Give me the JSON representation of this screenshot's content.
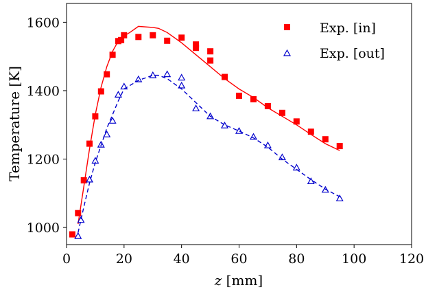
{
  "chart_data": {
    "type": "scatter",
    "xlabel_var": "z",
    "xlabel_unit": " [mm]",
    "ylabel": "Temperature [K]",
    "xlim": [
      0,
      120
    ],
    "ylim": [
      950,
      1655
    ],
    "xticks": [
      0,
      20,
      40,
      60,
      80,
      100,
      120
    ],
    "yticks": [
      1000,
      1200,
      1400,
      1600
    ],
    "grid": false,
    "legend_position": "top-right",
    "series": [
      {
        "name": "Exp. [in]",
        "marker": "filled-square",
        "color": "#ff0000",
        "x": [
          2,
          4,
          6,
          8,
          10,
          12,
          14,
          16,
          18,
          19,
          20,
          25,
          30,
          35,
          40,
          45,
          45,
          50,
          50,
          55,
          60,
          65,
          70,
          75,
          80,
          85,
          90,
          95
        ],
        "y": [
          980,
          1042,
          1138,
          1245,
          1325,
          1398,
          1448,
          1505,
          1545,
          1548,
          1562,
          1557,
          1562,
          1546,
          1555,
          1535,
          1525,
          1515,
          1488,
          1440,
          1385,
          1375,
          1355,
          1335,
          1310,
          1280,
          1258,
          1238
        ]
      },
      {
        "name": "Exp. [out]",
        "marker": "open-triangle",
        "color": "#0000cc",
        "x": [
          4,
          5,
          8,
          10,
          12,
          14,
          16,
          18,
          20,
          25,
          30,
          35,
          40,
          40,
          45,
          50,
          55,
          60,
          65,
          70,
          75,
          80,
          85,
          90,
          95
        ],
        "y": [
          975,
          1022,
          1140,
          1195,
          1242,
          1272,
          1312,
          1388,
          1412,
          1433,
          1445,
          1448,
          1438,
          1415,
          1348,
          1325,
          1298,
          1282,
          1265,
          1240,
          1205,
          1175,
          1135,
          1110,
          1085
        ]
      },
      {
        "type": "line",
        "style": "solid",
        "color": "#ff0000",
        "x": [
          4,
          6,
          8,
          10,
          12,
          14,
          16,
          18,
          20,
          22,
          25,
          30,
          32,
          35,
          40,
          45,
          50,
          55,
          60,
          65,
          70,
          75,
          80,
          85,
          90,
          95
        ],
        "y": [
          1010,
          1120,
          1230,
          1330,
          1410,
          1470,
          1515,
          1545,
          1560,
          1570,
          1588,
          1585,
          1582,
          1570,
          1540,
          1505,
          1470,
          1435,
          1405,
          1380,
          1350,
          1325,
          1300,
          1272,
          1245,
          1225
        ]
      },
      {
        "type": "line",
        "style": "dashed",
        "color": "#0000cc",
        "x": [
          4,
          6,
          8,
          10,
          12,
          14,
          16,
          18,
          20,
          25,
          30,
          32,
          35,
          40,
          45,
          50,
          55,
          60,
          65,
          70,
          75,
          80,
          85,
          90,
          95
        ],
        "y": [
          985,
          1060,
          1130,
          1190,
          1240,
          1290,
          1330,
          1370,
          1405,
          1430,
          1445,
          1445,
          1435,
          1405,
          1365,
          1325,
          1300,
          1282,
          1262,
          1235,
          1200,
          1170,
          1140,
          1112,
          1090
        ]
      }
    ]
  }
}
